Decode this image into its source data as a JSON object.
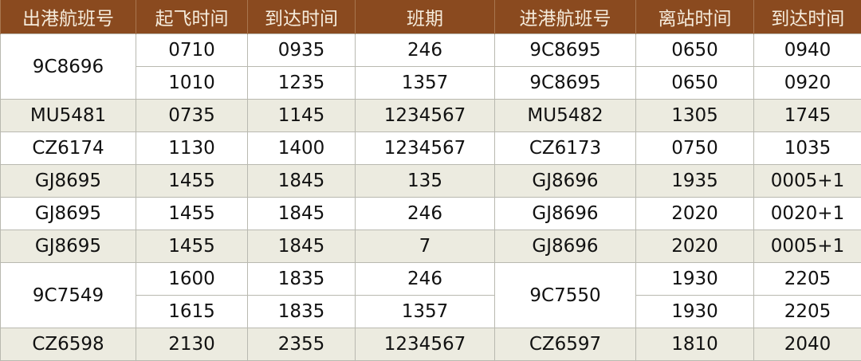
{
  "colors": {
    "header_bg": "#8a4a1f",
    "header_text": "#f6ecdc",
    "alt_row": "#ecebe0"
  },
  "headers": [
    "出港航班号",
    "起飞时间",
    "到达时间",
    "班期",
    "进港航班号",
    "离站时间",
    "到达时间"
  ],
  "rows": [
    {
      "alt": false,
      "cells": [
        "9C8696",
        "0710",
        "0935",
        "246",
        "9C8695",
        "0650",
        "0940"
      ]
    },
    {
      "alt": false,
      "cells": [
        null,
        "1010",
        "1235",
        "1357",
        "9C8695",
        "0650",
        "0920"
      ]
    },
    {
      "alt": true,
      "cells": [
        "MU5481",
        "0735",
        "1145",
        "1234567",
        "MU5482",
        "1305",
        "1745"
      ]
    },
    {
      "alt": false,
      "cells": [
        "CZ6174",
        "1130",
        "1400",
        "1234567",
        "CZ6173",
        "0750",
        "1035"
      ]
    },
    {
      "alt": true,
      "cells": [
        "GJ8695",
        "1455",
        "1845",
        "135",
        "GJ8696",
        "1935",
        "0005+1"
      ]
    },
    {
      "alt": false,
      "cells": [
        "GJ8695",
        "1455",
        "1845",
        "246",
        "GJ8696",
        "2020",
        "0020+1"
      ]
    },
    {
      "alt": true,
      "cells": [
        "GJ8695",
        "1455",
        "1845",
        "7",
        "GJ8696",
        "2020",
        "0005+1"
      ]
    },
    {
      "alt": false,
      "cells": [
        "9C7549",
        "1600",
        "1835",
        "246",
        "9C7550",
        "1930",
        "2205"
      ]
    },
    {
      "alt": false,
      "cells": [
        null,
        "1615",
        "1835",
        "1357",
        null,
        "1930",
        "2205"
      ]
    },
    {
      "alt": true,
      "cells": [
        "CZ6598",
        "2130",
        "2355",
        "1234567",
        "CZ6597",
        "1810",
        "2040"
      ]
    }
  ]
}
